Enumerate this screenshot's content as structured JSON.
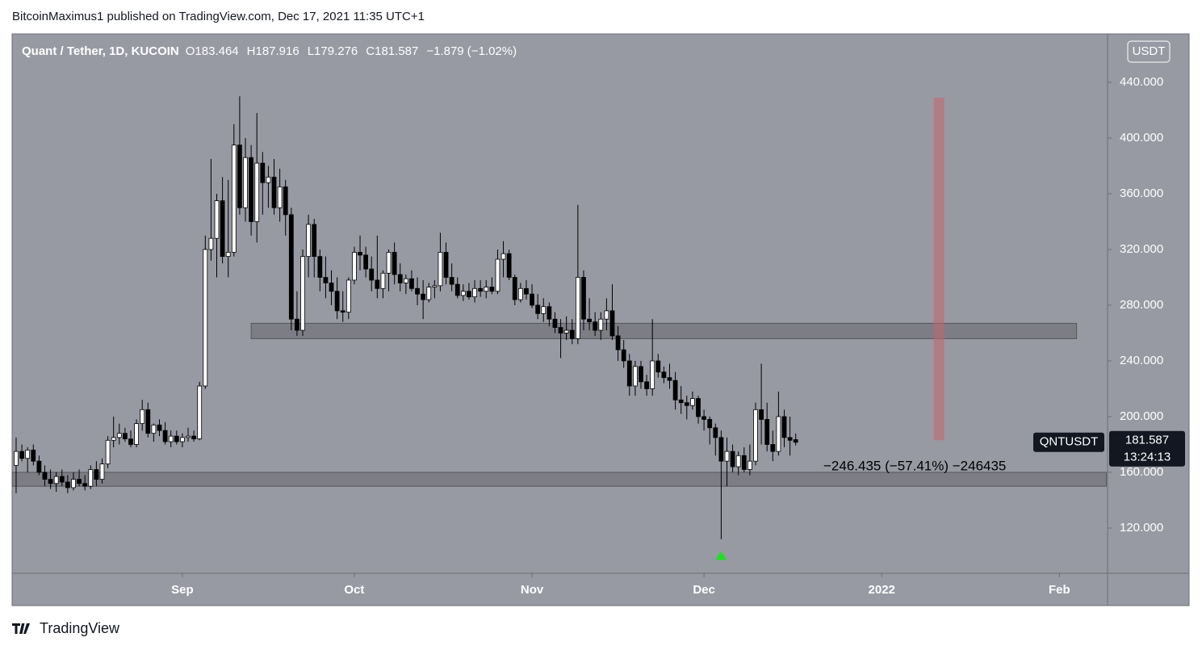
{
  "published": "BitcoinMaximus1 published on TradingView.com, Dec 17, 2021 11:35 UTC+1",
  "footer": "TradingView",
  "chart_data": {
    "type": "candlestick",
    "symbol": "Quant / Tether, 1D, KUCOIN",
    "ohlc_text": [
      "O183.464",
      "H187.916",
      "L179.276",
      "C181.587",
      "−1.879 (−1.02%)"
    ],
    "currency": "USDT",
    "price_label": {
      "name": "QNTUSDT",
      "price": "181.587",
      "countdown": "13:24:13"
    },
    "measure_text": "−246.435 (−57.41%) −246435",
    "up_color": "#ffffff",
    "down_color": "#000000",
    "xlim": [
      -0.7,
      190.4
    ],
    "xticks": [
      {
        "value": 29,
        "label": "Sep"
      },
      {
        "value": 59,
        "label": "Oct"
      },
      {
        "value": 90,
        "label": "Nov"
      },
      {
        "value": 120,
        "label": "Dec"
      },
      {
        "value": 151,
        "label": "2022"
      },
      {
        "value": 182,
        "label": "Feb"
      }
    ],
    "ylim": [
      87.5,
      474.8
    ],
    "yticks": [
      {
        "value": 120,
        "label": "120.000"
      },
      {
        "value": 160,
        "label": "160.000"
      },
      {
        "value": 200,
        "label": "200.000"
      },
      {
        "value": 240,
        "label": "240.000"
      },
      {
        "value": 280,
        "label": "280.000"
      },
      {
        "value": 320,
        "label": "320.000"
      },
      {
        "value": 360,
        "label": "360.000"
      },
      {
        "value": 400,
        "label": "400.000"
      },
      {
        "value": 440,
        "label": "440.000"
      }
    ],
    "zones": [
      {
        "low": 256,
        "high": 267,
        "from": 41,
        "to": 185
      },
      {
        "low": 150,
        "high": 160,
        "from": -0.7,
        "to": 190.2
      }
    ],
    "target_bar": {
      "low": 183,
      "high": 429,
      "at": 161
    },
    "signal": {
      "at": 123,
      "value": 100
    },
    "candles": [
      [
        165,
        185,
        145,
        175
      ],
      [
        175,
        180,
        168,
        170
      ],
      [
        170,
        178,
        160,
        176
      ],
      [
        176,
        180,
        165,
        168
      ],
      [
        168,
        172,
        158,
        160
      ],
      [
        160,
        165,
        150,
        155
      ],
      [
        155,
        162,
        148,
        152
      ],
      [
        152,
        160,
        146,
        157
      ],
      [
        157,
        162,
        150,
        153
      ],
      [
        153,
        158,
        145,
        149
      ],
      [
        149,
        160,
        147,
        155
      ],
      [
        155,
        162,
        150,
        152
      ],
      [
        152,
        158,
        147,
        150
      ],
      [
        150,
        165,
        148,
        162
      ],
      [
        162,
        168,
        150,
        155
      ],
      [
        155,
        170,
        152,
        166
      ],
      [
        166,
        186,
        163,
        183
      ],
      [
        183,
        200,
        178,
        185
      ],
      [
        185,
        195,
        180,
        188
      ],
      [
        188,
        192,
        182,
        184
      ],
      [
        184,
        190,
        178,
        180
      ],
      [
        180,
        198,
        178,
        195
      ],
      [
        195,
        212,
        190,
        205
      ],
      [
        205,
        210,
        185,
        188
      ],
      [
        188,
        195,
        182,
        194
      ],
      [
        194,
        198,
        186,
        190
      ],
      [
        190,
        196,
        180,
        182
      ],
      [
        182,
        190,
        178,
        186
      ],
      [
        186,
        190,
        180,
        182
      ],
      [
        182,
        188,
        178,
        185
      ],
      [
        185,
        192,
        182,
        186
      ],
      [
        186,
        190,
        182,
        184
      ],
      [
        184,
        225,
        183,
        222
      ],
      [
        222,
        330,
        220,
        320
      ],
      [
        320,
        385,
        312,
        328
      ],
      [
        328,
        360,
        300,
        355
      ],
      [
        355,
        372,
        310,
        315
      ],
      [
        315,
        370,
        300,
        318
      ],
      [
        318,
        410,
        315,
        395
      ],
      [
        395,
        430,
        345,
        350
      ],
      [
        350,
        400,
        340,
        386
      ],
      [
        386,
        395,
        330,
        340
      ],
      [
        340,
        418,
        325,
        382
      ],
      [
        382,
        390,
        345,
        368
      ],
      [
        368,
        380,
        350,
        372
      ],
      [
        372,
        385,
        345,
        350
      ],
      [
        350,
        378,
        340,
        365
      ],
      [
        365,
        370,
        330,
        345
      ],
      [
        345,
        350,
        262,
        270
      ],
      [
        270,
        290,
        258,
        262
      ],
      [
        262,
        320,
        258,
        315
      ],
      [
        315,
        345,
        300,
        338
      ],
      [
        338,
        342,
        300,
        315
      ],
      [
        315,
        320,
        290,
        300
      ],
      [
        300,
        315,
        285,
        296
      ],
      [
        296,
        305,
        280,
        290
      ],
      [
        290,
        300,
        270,
        276
      ],
      [
        276,
        290,
        268,
        275
      ],
      [
        275,
        300,
        270,
        298
      ],
      [
        298,
        322,
        295,
        318
      ],
      [
        318,
        330,
        305,
        316
      ],
      [
        316,
        322,
        300,
        306
      ],
      [
        306,
        315,
        290,
        298
      ],
      [
        298,
        330,
        285,
        292
      ],
      [
        292,
        305,
        285,
        303
      ],
      [
        303,
        320,
        290,
        318
      ],
      [
        318,
        325,
        295,
        302
      ],
      [
        302,
        310,
        290,
        296
      ],
      [
        296,
        302,
        288,
        299
      ],
      [
        299,
        305,
        290,
        292
      ],
      [
        292,
        300,
        280,
        288
      ],
      [
        288,
        298,
        270,
        284
      ],
      [
        284,
        296,
        282,
        293
      ],
      [
        293,
        298,
        285,
        294
      ],
      [
        294,
        332,
        290,
        318
      ],
      [
        318,
        325,
        295,
        300
      ],
      [
        300,
        310,
        290,
        295
      ],
      [
        295,
        300,
        285,
        287
      ],
      [
        287,
        295,
        283,
        290
      ],
      [
        290,
        296,
        284,
        286
      ],
      [
        286,
        298,
        282,
        292
      ],
      [
        292,
        298,
        286,
        290
      ],
      [
        290,
        298,
        285,
        293
      ],
      [
        293,
        300,
        288,
        290
      ],
      [
        290,
        320,
        288,
        313
      ],
      [
        313,
        326,
        300,
        317
      ],
      [
        317,
        320,
        298,
        300
      ],
      [
        300,
        302,
        280,
        284
      ],
      [
        284,
        296,
        282,
        292
      ],
      [
        292,
        298,
        284,
        288
      ],
      [
        288,
        295,
        278,
        280
      ],
      [
        280,
        288,
        270,
        274
      ],
      [
        274,
        285,
        268,
        279
      ],
      [
        279,
        282,
        265,
        270
      ],
      [
        270,
        275,
        260,
        264
      ],
      [
        264,
        270,
        242,
        260
      ],
      [
        260,
        272,
        255,
        262
      ],
      [
        262,
        270,
        252,
        256
      ],
      [
        256,
        352,
        252,
        300
      ],
      [
        300,
        305,
        262,
        270
      ],
      [
        270,
        285,
        262,
        268
      ],
      [
        268,
        275,
        258,
        262
      ],
      [
        262,
        275,
        255,
        270
      ],
      [
        270,
        285,
        262,
        276
      ],
      [
        276,
        295,
        255,
        258
      ],
      [
        258,
        265,
        240,
        248
      ],
      [
        248,
        255,
        235,
        240
      ],
      [
        240,
        245,
        215,
        222
      ],
      [
        222,
        240,
        215,
        236
      ],
      [
        236,
        240,
        220,
        225
      ],
      [
        225,
        230,
        215,
        220
      ],
      [
        220,
        270,
        215,
        240
      ],
      [
        240,
        245,
        228,
        232
      ],
      [
        232,
        236,
        224,
        228
      ],
      [
        228,
        238,
        220,
        226
      ],
      [
        226,
        232,
        205,
        212
      ],
      [
        212,
        222,
        202,
        210
      ],
      [
        210,
        215,
        198,
        208
      ],
      [
        208,
        218,
        205,
        213
      ],
      [
        213,
        215,
        195,
        200
      ],
      [
        200,
        205,
        190,
        198
      ],
      [
        198,
        200,
        180,
        192
      ],
      [
        192,
        195,
        172,
        185
      ],
      [
        185,
        190,
        112,
        168
      ],
      [
        168,
        185,
        150,
        175
      ],
      [
        175,
        180,
        160,
        164
      ],
      [
        164,
        175,
        158,
        172
      ],
      [
        172,
        178,
        160,
        162
      ],
      [
        162,
        180,
        158,
        168
      ],
      [
        168,
        210,
        165,
        205
      ],
      [
        205,
        238,
        180,
        198
      ],
      [
        198,
        210,
        175,
        180
      ],
      [
        180,
        190,
        168,
        175
      ],
      [
        175,
        218,
        172,
        200
      ],
      [
        200,
        205,
        178,
        185
      ],
      [
        185,
        200,
        172,
        183
      ],
      [
        183.464,
        187.916,
        179.276,
        181.587
      ]
    ]
  }
}
